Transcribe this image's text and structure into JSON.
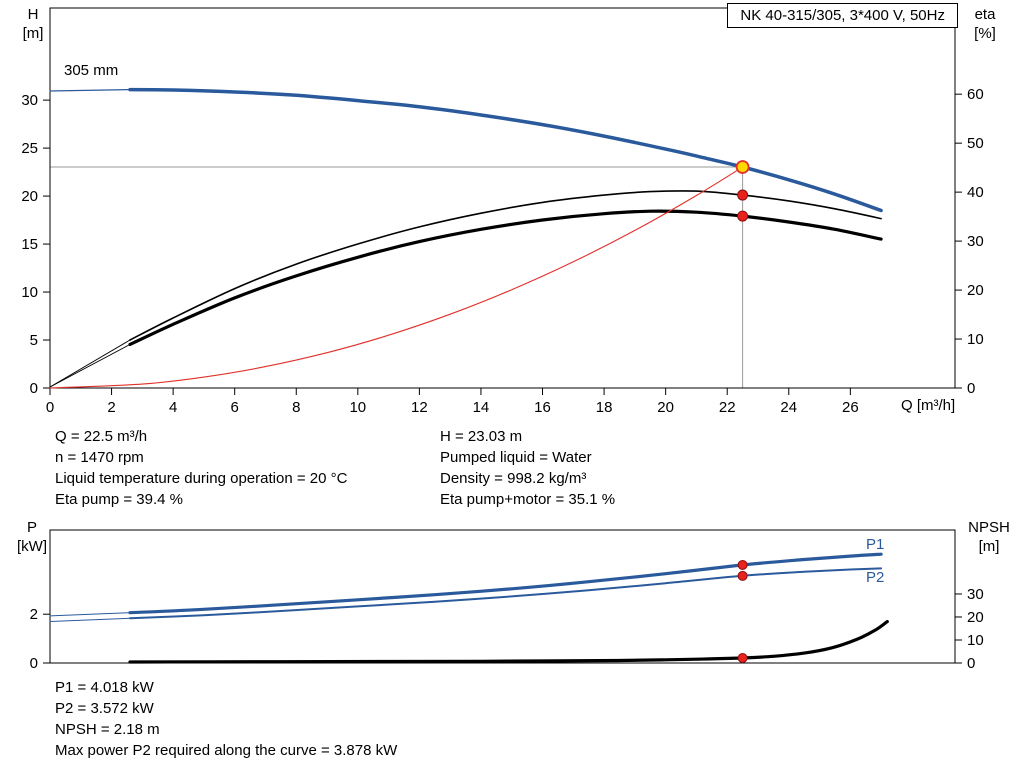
{
  "colors": {
    "curve_blue": "#2a5a9c",
    "curve_black": "#000000",
    "system_red": "#e0312a",
    "marker_red": "#e8231d",
    "marker_red_edge": "#8f0d10",
    "duty_yellow": "#ffd800",
    "crosshair_gray": "#9a9a9a"
  },
  "operating_texts": {
    "left": [
      "Q = 22.5 m³/h",
      "n = 1470 rpm",
      "Liquid temperature during operation = 20 °C",
      "Eta pump = 39.4 %"
    ],
    "right": [
      "H = 23.03 m",
      "Pumped liquid = Water",
      "Density = 998.2 kg/m³",
      "Eta pump+motor = 35.1 %"
    ]
  },
  "bottom_texts": [
    "P1 = 4.018 kW",
    "P2 = 3.572 kW",
    "NPSH = 2.18 m",
    "Max power P2 required along the curve = 3.878 kW"
  ],
  "chart_data": [
    {
      "type": "line",
      "title": "NK 40-315/305, 3*400 V, 50Hz",
      "xlabel": "Q [m³/h]",
      "ylabel_left": "H [m]",
      "ylabel_right": "eta [%]",
      "axis_left_title": [
        "H",
        "[m]"
      ],
      "axis_right_title": [
        "eta",
        "[%]"
      ],
      "curve_label": "305 mm",
      "xlim": [
        0,
        29.4
      ],
      "ylim_left": [
        0,
        39.6
      ],
      "ylim_right": [
        0,
        77.6
      ],
      "xticks": [
        0,
        2,
        4,
        6,
        8,
        10,
        12,
        14,
        16,
        18,
        20,
        22,
        24,
        26
      ],
      "yticks_left": [
        0,
        5,
        10,
        15,
        20,
        25,
        30
      ],
      "yticks_right": [
        0,
        10,
        20,
        30,
        40,
        50,
        60
      ],
      "grid": false,
      "series": [
        {
          "name": "head-curve-lead-in",
          "axis": "left",
          "color": "#2a5a9c",
          "width": 1.2,
          "points": [
            [
              0,
              30.95
            ],
            [
              2.6,
              31.1
            ]
          ]
        },
        {
          "name": "head-curve-305mm",
          "axis": "left",
          "color": "#2a5a9c",
          "width": 3.5,
          "points": [
            [
              2.6,
              31.1
            ],
            [
              4,
              31.05
            ],
            [
              6,
              30.85
            ],
            [
              8,
              30.5
            ],
            [
              10,
              29.95
            ],
            [
              12,
              29.3
            ],
            [
              14,
              28.45
            ],
            [
              16,
              27.45
            ],
            [
              18,
              26.25
            ],
            [
              20,
              24.9
            ],
            [
              21.3,
              23.95
            ],
            [
              22.5,
              23.03
            ],
            [
              24,
              21.7
            ],
            [
              25.5,
              20.2
            ],
            [
              27,
              18.5
            ]
          ]
        },
        {
          "name": "eta-pump-lead-in",
          "axis": "right",
          "color": "#000000",
          "width": 0.9,
          "points": [
            [
              0,
              0.2
            ],
            [
              2.6,
              9.8
            ]
          ]
        },
        {
          "name": "eta-pump-motor-lead-in",
          "axis": "right",
          "color": "#000000",
          "width": 0.9,
          "points": [
            [
              0,
              0.2
            ],
            [
              2.6,
              8.9
            ]
          ]
        },
        {
          "name": "eta-pump",
          "axis": "right",
          "color": "#000000",
          "width": 1.6,
          "points": [
            [
              2.6,
              9.8
            ],
            [
              4,
              14.3
            ],
            [
              6,
              20.3
            ],
            [
              8,
              25.3
            ],
            [
              10,
              29.4
            ],
            [
              12,
              32.9
            ],
            [
              14,
              35.7
            ],
            [
              16,
              37.9
            ],
            [
              18,
              39.4
            ],
            [
              19.5,
              40.1
            ],
            [
              21,
              40.2
            ],
            [
              22.5,
              39.4
            ],
            [
              24,
              38.2
            ],
            [
              25.5,
              36.6
            ],
            [
              27,
              34.6
            ]
          ]
        },
        {
          "name": "eta-pump-motor",
          "axis": "right",
          "color": "#000000",
          "width": 3.2,
          "points": [
            [
              2.6,
              8.9
            ],
            [
              4,
              13.0
            ],
            [
              6,
              18.4
            ],
            [
              8,
              22.9
            ],
            [
              10,
              26.7
            ],
            [
              12,
              29.9
            ],
            [
              14,
              32.4
            ],
            [
              16,
              34.3
            ],
            [
              18,
              35.6
            ],
            [
              19.5,
              36.1
            ],
            [
              21,
              35.9
            ],
            [
              22.5,
              35.1
            ],
            [
              24,
              33.9
            ],
            [
              25.5,
              32.4
            ],
            [
              27,
              30.4
            ]
          ]
        },
        {
          "name": "system-curve",
          "axis": "left",
          "color": "#e0312a",
          "width": 1.1,
          "points": [
            [
              0,
              0
            ],
            [
              3,
              0.41
            ],
            [
              5,
              1.14
            ],
            [
              7,
              2.23
            ],
            [
              9,
              3.68
            ],
            [
              11,
              5.5
            ],
            [
              13,
              7.69
            ],
            [
              15,
              10.24
            ],
            [
              17,
              13.15
            ],
            [
              19,
              16.42
            ],
            [
              21,
              20.06
            ],
            [
              22.5,
              23.03
            ]
          ]
        }
      ],
      "crosshair": {
        "x": 22.5,
        "y": 23.03
      },
      "markers": [
        {
          "name": "eta-pump-point",
          "x": 22.5,
          "y": 39.4,
          "axis": "right",
          "r": 5,
          "fill": "#e8231d",
          "stroke": "#8f0d10",
          "stroke_width": 1
        },
        {
          "name": "eta-pump-motor-point",
          "x": 22.5,
          "y": 35.1,
          "axis": "right",
          "r": 5,
          "fill": "#e8231d",
          "stroke": "#8f0d10",
          "stroke_width": 1
        },
        {
          "name": "duty-point",
          "x": 22.5,
          "y": 23.03,
          "axis": "left",
          "r": 6,
          "fill": "#ffd800",
          "stroke": "#e0312a",
          "stroke_width": 1.8
        }
      ]
    },
    {
      "type": "line",
      "title": "",
      "xlabel": "",
      "ylabel_left": "P [kW]",
      "ylabel_right": "NPSH [m]",
      "axis_left_title": [
        "P",
        "[kW]"
      ],
      "axis_right_title": [
        "NPSH",
        "[m]"
      ],
      "label_p1": "P1",
      "label_p2": "P2",
      "xlim": [
        0,
        29.4
      ],
      "ylim_left": [
        0,
        5.45
      ],
      "ylim_right": [
        0,
        57.8
      ],
      "xticks": [],
      "yticks_left": [
        0,
        2
      ],
      "yticks_right": [
        0,
        10,
        20,
        30
      ],
      "grid": false,
      "series": [
        {
          "name": "p1-lead-in",
          "axis": "left",
          "color": "#2a5a9c",
          "width": 1,
          "points": [
            [
              0,
              1.93
            ],
            [
              2.6,
              2.06
            ]
          ]
        },
        {
          "name": "p2-lead-in",
          "axis": "left",
          "color": "#2a5a9c",
          "width": 1,
          "points": [
            [
              0,
              1.7
            ],
            [
              2.6,
              1.83
            ]
          ]
        },
        {
          "name": "p1-power",
          "axis": "left",
          "color": "#2a5a9c",
          "width": 3.2,
          "points": [
            [
              2.6,
              2.06
            ],
            [
              5,
              2.2
            ],
            [
              7.5,
              2.39
            ],
            [
              10,
              2.59
            ],
            [
              12.5,
              2.8
            ],
            [
              15,
              3.04
            ],
            [
              17.5,
              3.33
            ],
            [
              20,
              3.66
            ],
            [
              22.5,
              4.018
            ],
            [
              24.5,
              4.24
            ],
            [
              26,
              4.38
            ],
            [
              27,
              4.46
            ]
          ]
        },
        {
          "name": "p2-power",
          "axis": "left",
          "color": "#2a5a9c",
          "width": 2,
          "points": [
            [
              2.6,
              1.83
            ],
            [
              5,
              1.96
            ],
            [
              7.5,
              2.13
            ],
            [
              10,
              2.32
            ],
            [
              12.5,
              2.51
            ],
            [
              15,
              2.73
            ],
            [
              17.5,
              2.98
            ],
            [
              20,
              3.27
            ],
            [
              22.5,
              3.572
            ],
            [
              24.5,
              3.74
            ],
            [
              26,
              3.83
            ],
            [
              27,
              3.878
            ]
          ]
        },
        {
          "name": "npsh-curve",
          "axis": "right",
          "color": "#000000",
          "width": 3.2,
          "points": [
            [
              2.6,
              0.45
            ],
            [
              7,
              0.55
            ],
            [
              11,
              0.65
            ],
            [
              14,
              0.75
            ],
            [
              16.5,
              0.9
            ],
            [
              18.5,
              1.1
            ],
            [
              20,
              1.4
            ],
            [
              21.3,
              1.75
            ],
            [
              22.5,
              2.18
            ],
            [
              23.5,
              2.9
            ],
            [
              24.5,
              4.3
            ],
            [
              25.4,
              6.6
            ],
            [
              26.2,
              10.2
            ],
            [
              26.8,
              14.2
            ],
            [
              27.2,
              18.0
            ]
          ]
        }
      ],
      "markers": [
        {
          "name": "p1-point",
          "x": 22.5,
          "y": 4.018,
          "axis": "left",
          "r": 4.5,
          "fill": "#e8231d",
          "stroke": "#8f0d10",
          "stroke_width": 1
        },
        {
          "name": "p2-point",
          "x": 22.5,
          "y": 3.572,
          "axis": "left",
          "r": 4.5,
          "fill": "#e8231d",
          "stroke": "#8f0d10",
          "stroke_width": 1
        },
        {
          "name": "npsh-point",
          "x": 22.5,
          "y": 2.18,
          "axis": "right",
          "r": 4.5,
          "fill": "#e8231d",
          "stroke": "#8f0d10",
          "stroke_width": 1
        }
      ]
    }
  ]
}
